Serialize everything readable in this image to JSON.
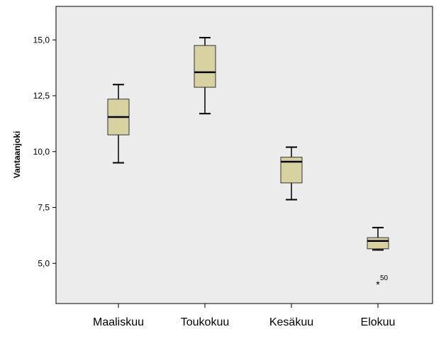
{
  "chart_data": {
    "type": "boxplot",
    "title": "",
    "xlabel": "",
    "ylabel": "Vantaanjoki",
    "ylim": [
      3.2,
      16.5
    ],
    "yticks": [
      {
        "value": 5.0,
        "label": "5,0"
      },
      {
        "value": 7.5,
        "label": "7,5"
      },
      {
        "value": 10.0,
        "label": "10,0"
      },
      {
        "value": 12.5,
        "label": "12,5"
      },
      {
        "value": 15.0,
        "label": "15,0"
      }
    ],
    "grid": false,
    "legend": "none",
    "colors": {
      "plot_background": "#ececec",
      "box_fill": "#d8d1a0",
      "box_stroke": "#333333",
      "axis": "#000000",
      "median": "#000000"
    },
    "categories": [
      "Maaliskuu",
      "Toukokuu",
      "Kesäkuu",
      "Elokuu"
    ],
    "boxes": [
      {
        "category": "Maaliskuu",
        "whisker_low": 9.5,
        "q1": 10.75,
        "median": 11.55,
        "q3": 12.35,
        "whisker_high": 13.0,
        "outliers": []
      },
      {
        "category": "Toukokuu",
        "whisker_low": 11.7,
        "q1": 12.88,
        "median": 13.55,
        "q3": 14.75,
        "whisker_high": 15.1,
        "outliers": []
      },
      {
        "category": "Kesäkuu",
        "whisker_low": 7.85,
        "q1": 8.6,
        "median": 9.55,
        "q3": 9.75,
        "whisker_high": 10.2,
        "outliers": []
      },
      {
        "category": "Elokuu",
        "whisker_low": 5.6,
        "q1": 5.65,
        "median": 6.0,
        "q3": 6.15,
        "whisker_high": 6.6,
        "outliers": [
          {
            "value": 4.05,
            "marker": "*",
            "label": "50"
          }
        ]
      }
    ]
  }
}
